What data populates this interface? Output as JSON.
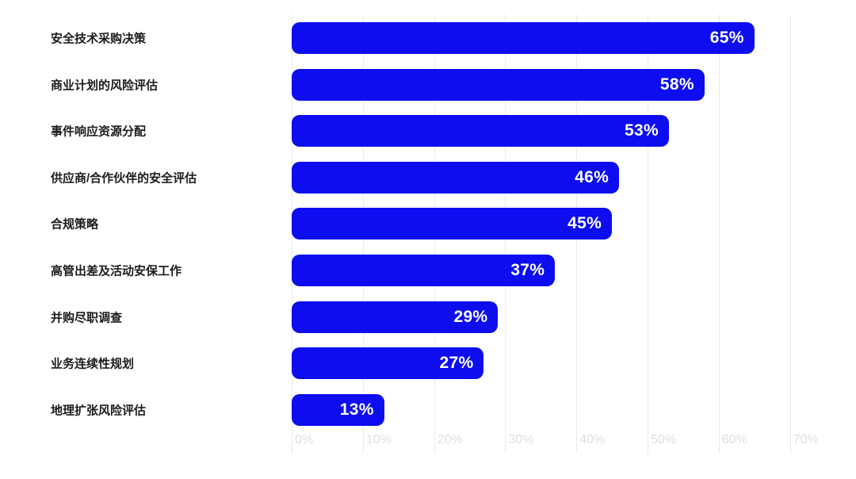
{
  "chart": {
    "background_color": "#ffffff",
    "bar_color": "#0d0df0",
    "grid_color": "#e9e9e9",
    "tick_label_color": "#dedede",
    "category_label_color": "#1c1c1c",
    "value_label_color": "#ffffff"
  },
  "chart_data": {
    "type": "bar",
    "orientation": "horizontal",
    "title": "",
    "xlabel": "",
    "ylabel": "",
    "categories": [
      "安全技术采购决策",
      "商业计划的风险评估",
      "事件响应资源分配",
      "供应商/合作伙伴的安全评估",
      "合规策略",
      "高管出差及活动安保工作",
      "并购尽职调查",
      "业务连续性规划",
      "地理扩张风险评估"
    ],
    "values": [
      65,
      58,
      53,
      46,
      45,
      37,
      29,
      27,
      13
    ],
    "value_labels": [
      "65%",
      "58%",
      "53%",
      "46%",
      "45%",
      "37%",
      "29%",
      "27%",
      "13%"
    ],
    "value_labels_position": "inside-end",
    "x_tick_values": [
      0,
      10,
      20,
      30,
      40,
      50,
      60,
      70
    ],
    "x_tick_labels": [
      "0%",
      "10%",
      "20%",
      "30%",
      "40%",
      "50%",
      "60%",
      "70%"
    ],
    "xlim": [
      0,
      70
    ],
    "grid": "vertical",
    "legend": "none",
    "bar_color": "#0d0df0"
  }
}
